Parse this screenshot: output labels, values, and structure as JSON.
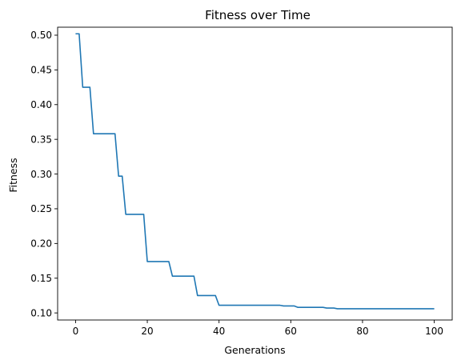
{
  "chart_data": {
    "type": "line",
    "title": "Fitness over Time",
    "xlabel": "Generations",
    "ylabel": "Fitness",
    "xlim": [
      -5,
      105
    ],
    "ylim": [
      0.0898,
      0.5115
    ],
    "xticks": [
      0,
      20,
      40,
      60,
      80,
      100
    ],
    "xtick_labels": [
      "0",
      "20",
      "40",
      "60",
      "80",
      "100"
    ],
    "yticks": [
      0.1,
      0.15,
      0.2,
      0.25,
      0.3,
      0.35,
      0.4,
      0.45,
      0.5
    ],
    "ytick_labels": [
      "0.10",
      "0.15",
      "0.20",
      "0.25",
      "0.30",
      "0.35",
      "0.40",
      "0.45",
      "0.50"
    ],
    "grid": false,
    "series": [
      {
        "color": "#1f77b4",
        "x": [
          0,
          1,
          2,
          3,
          4,
          5,
          6,
          7,
          8,
          9,
          10,
          11,
          12,
          13,
          14,
          15,
          16,
          17,
          18,
          19,
          20,
          21,
          22,
          23,
          24,
          25,
          26,
          27,
          28,
          29,
          30,
          31,
          32,
          33,
          34,
          35,
          36,
          37,
          38,
          39,
          40,
          41,
          42,
          43,
          44,
          45,
          46,
          47,
          48,
          49,
          50,
          51,
          52,
          53,
          54,
          55,
          56,
          57,
          58,
          59,
          60,
          61,
          62,
          63,
          64,
          65,
          66,
          67,
          68,
          69,
          70,
          71,
          72,
          73,
          74,
          75,
          76,
          77,
          78,
          79,
          80,
          81,
          82,
          83,
          84,
          85,
          86,
          87,
          88,
          89,
          90,
          91,
          92,
          93,
          94,
          95,
          96,
          97,
          98,
          99,
          100
        ],
        "y": [
          0.502,
          0.502,
          0.425,
          0.425,
          0.425,
          0.358,
          0.358,
          0.358,
          0.358,
          0.358,
          0.358,
          0.358,
          0.297,
          0.297,
          0.242,
          0.242,
          0.242,
          0.242,
          0.242,
          0.242,
          0.174,
          0.174,
          0.174,
          0.174,
          0.174,
          0.174,
          0.174,
          0.153,
          0.153,
          0.153,
          0.153,
          0.153,
          0.153,
          0.153,
          0.125,
          0.125,
          0.125,
          0.125,
          0.125,
          0.125,
          0.111,
          0.111,
          0.111,
          0.111,
          0.111,
          0.111,
          0.111,
          0.111,
          0.111,
          0.111,
          0.111,
          0.111,
          0.111,
          0.111,
          0.111,
          0.111,
          0.111,
          0.111,
          0.11,
          0.11,
          0.11,
          0.11,
          0.108,
          0.108,
          0.108,
          0.108,
          0.108,
          0.108,
          0.108,
          0.108,
          0.107,
          0.107,
          0.107,
          0.106,
          0.106,
          0.106,
          0.106,
          0.106,
          0.106,
          0.106,
          0.106,
          0.106,
          0.106,
          0.106,
          0.106,
          0.106,
          0.106,
          0.106,
          0.106,
          0.106,
          0.106,
          0.106,
          0.106,
          0.106,
          0.106,
          0.106,
          0.106,
          0.106,
          0.106,
          0.106,
          0.106
        ]
      }
    ]
  }
}
